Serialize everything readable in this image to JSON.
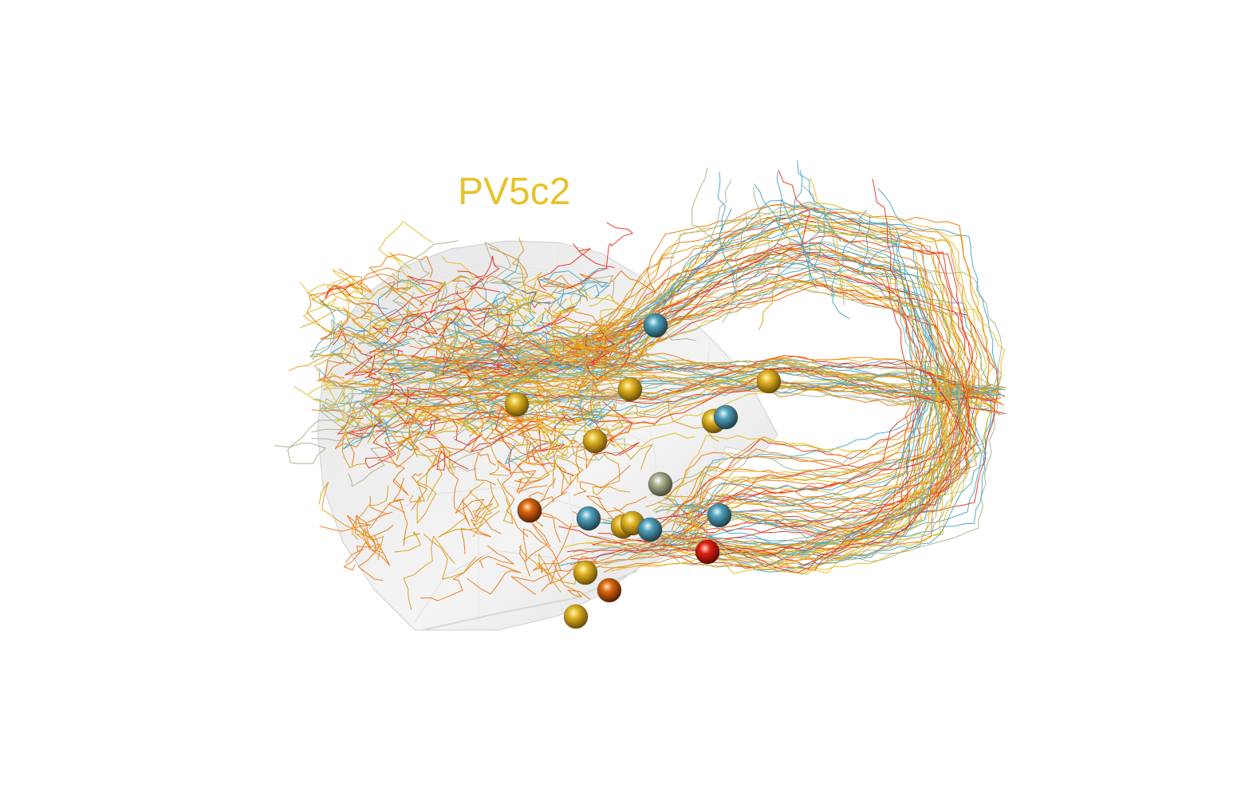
{
  "label": "PV5c2",
  "colors": {
    "red": "#e8341c",
    "orange": "#ec7a12",
    "yellow": "#e6bc1c",
    "gold": "#d9a019",
    "blue": "#4aa6c4",
    "sage": "#a5b38a",
    "mesh": "#d6d6d6"
  },
  "soma_colors": [
    "gold",
    "blue",
    "gold",
    "gold",
    "sage",
    "gold",
    "blue",
    "red",
    "orange",
    "blue",
    "gold",
    "gold",
    "blue",
    "orange",
    "gold",
    "orange",
    "blue",
    "gold",
    "gold"
  ]
}
